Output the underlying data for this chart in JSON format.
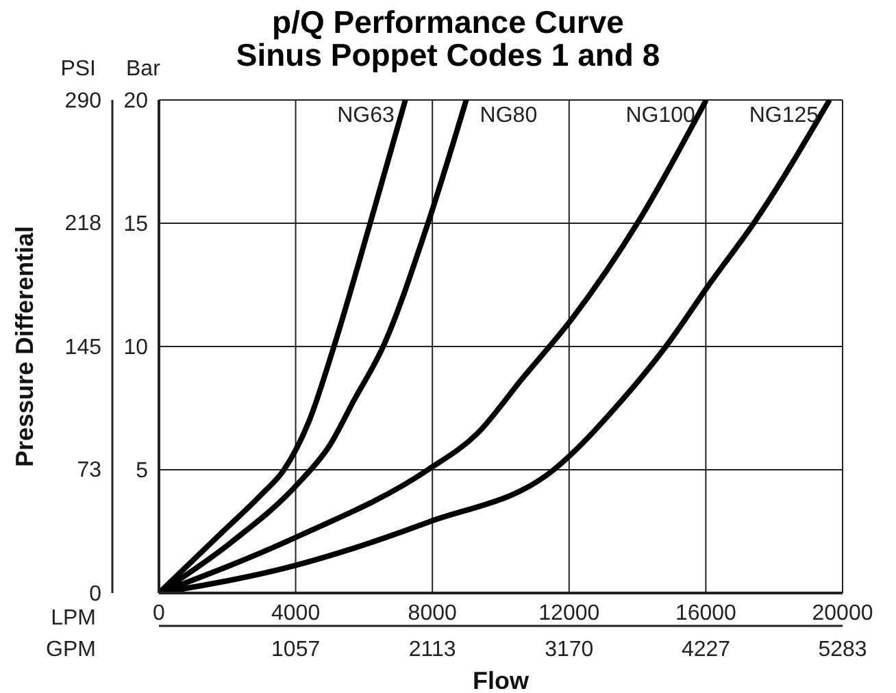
{
  "chart_data": {
    "type": "line",
    "title": "p/Q Performance Curve",
    "subtitle": "Sinus Poppet Codes 1 and 8",
    "xlabel": "Flow",
    "ylabel": "Pressure Differential",
    "annotations": [
      "PSI",
      "Bar",
      "LPM",
      "GPM"
    ],
    "xlim": [
      0,
      20000
    ],
    "xticks": [
      0,
      4000,
      8000,
      12000,
      16000,
      20000
    ],
    "x2lim": [
      0,
      5283
    ],
    "x2ticks": [
      1057,
      2113,
      3170,
      4227,
      5283
    ],
    "ylim": [
      0,
      290
    ],
    "yticks": [
      0,
      73,
      145,
      218,
      290
    ],
    "y2lim": [
      0,
      20
    ],
    "y2ticks": [
      5,
      10,
      15,
      20
    ],
    "grid": true,
    "marker": "none",
    "line_style": "solid",
    "series": [
      {
        "name": "NG63",
        "color": "#000000",
        "axis": "y2",
        "x": [
          0,
          1800,
          3000,
          3660,
          4400,
          5120,
          6180,
          7210
        ],
        "values": [
          0,
          2.4,
          4,
          5,
          7,
          10,
          15,
          20
        ]
      },
      {
        "name": "NG80",
        "color": "#000000",
        "axis": "y2",
        "x": [
          0,
          2100,
          4070,
          5000,
          5700,
          6560,
          7870,
          8990
        ],
        "values": [
          0,
          2.04,
          4.44,
          6,
          7.8,
          10,
          15,
          20
        ]
      },
      {
        "name": "NG100",
        "color": "#000000",
        "axis": "y2",
        "x": [
          0,
          3940,
          7870,
          9320,
          10630,
          12070,
          14040,
          16010
        ],
        "values": [
          0,
          2.22,
          5,
          6.48,
          8.7,
          11.1,
          15.1,
          20
        ]
      },
      {
        "name": "NG125",
        "color": "#000000",
        "axis": "y2",
        "x": [
          0,
          3940,
          7870,
          11550,
          13520,
          14830,
          16140,
          17450,
          19620
        ],
        "values": [
          0,
          1.1,
          2.87,
          5,
          7.78,
          10,
          12.6,
          15.1,
          20
        ]
      }
    ]
  }
}
